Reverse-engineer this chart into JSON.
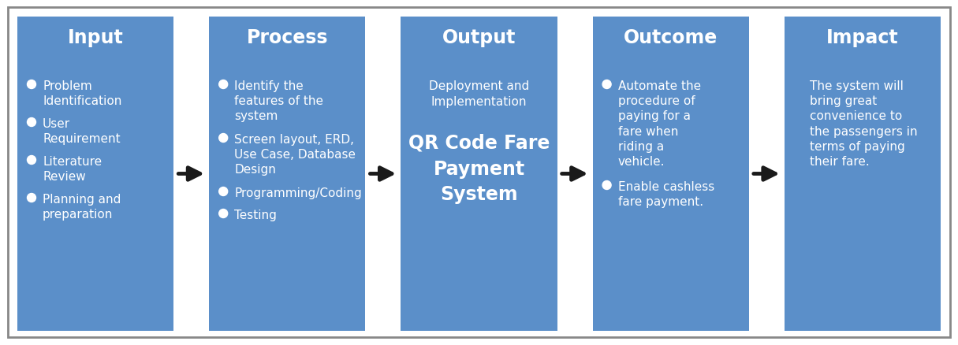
{
  "bg_color": "#ffffff",
  "outer_border_color": "#888888",
  "box_bg_color": "#5b8fc9",
  "arrow_color": "#1a1a1a",
  "text_color": "#ffffff",
  "title_fontsize": 17,
  "body_fontsize": 11,
  "body_fontsize_small": 9,
  "boxes": [
    {
      "title": "Input",
      "body_align": "left",
      "body_lines": [
        {
          "bullet": true,
          "text": "Problem\nIdentification",
          "small": false
        },
        {
          "bullet": true,
          "text": "User\nRequirement",
          "small": false
        },
        {
          "bullet": true,
          "text": "Literature\nReview",
          "small": false
        },
        {
          "bullet": true,
          "text": "Planning and\npreparation",
          "small": false
        }
      ]
    },
    {
      "title": "Process",
      "body_align": "left",
      "body_lines": [
        {
          "bullet": true,
          "text": "Identify the\nfeatures of the\nsystem",
          "small": false
        },
        {
          "bullet": true,
          "text": "Screen layout, ERD,\nUse Case, Database\nDesign",
          "small": false
        },
        {
          "bullet": true,
          "text": "Programming/Coding",
          "small": false
        },
        {
          "bullet": true,
          "text": "Testing",
          "small": false
        }
      ]
    },
    {
      "title": "Output",
      "body_align": "center",
      "body_lines": [
        {
          "bullet": false,
          "text": "Deployment and\nImplementation",
          "small": false,
          "bold": false
        },
        {
          "bullet": false,
          "text": "",
          "small": false,
          "bold": false
        },
        {
          "bullet": false,
          "text": "QR Code Fare\nPayment\nSystem",
          "small": false,
          "bold": true
        }
      ]
    },
    {
      "title": "Outcome",
      "body_align": "left",
      "body_lines": [
        {
          "bullet": true,
          "text": "Automate the\nprocedure of\npaying for a\nfare when\nriding a\nvehicle.",
          "small": false
        },
        {
          "bullet": true,
          "text": "Enable cashless\nfare payment.",
          "small": false
        }
      ]
    },
    {
      "title": "Impact",
      "body_align": "left",
      "body_lines": [
        {
          "bullet": false,
          "text": "The system will\nbring great\nconvenience to\nthe passengers in\nterms of paying\ntheir fare.",
          "small": false
        }
      ]
    }
  ]
}
